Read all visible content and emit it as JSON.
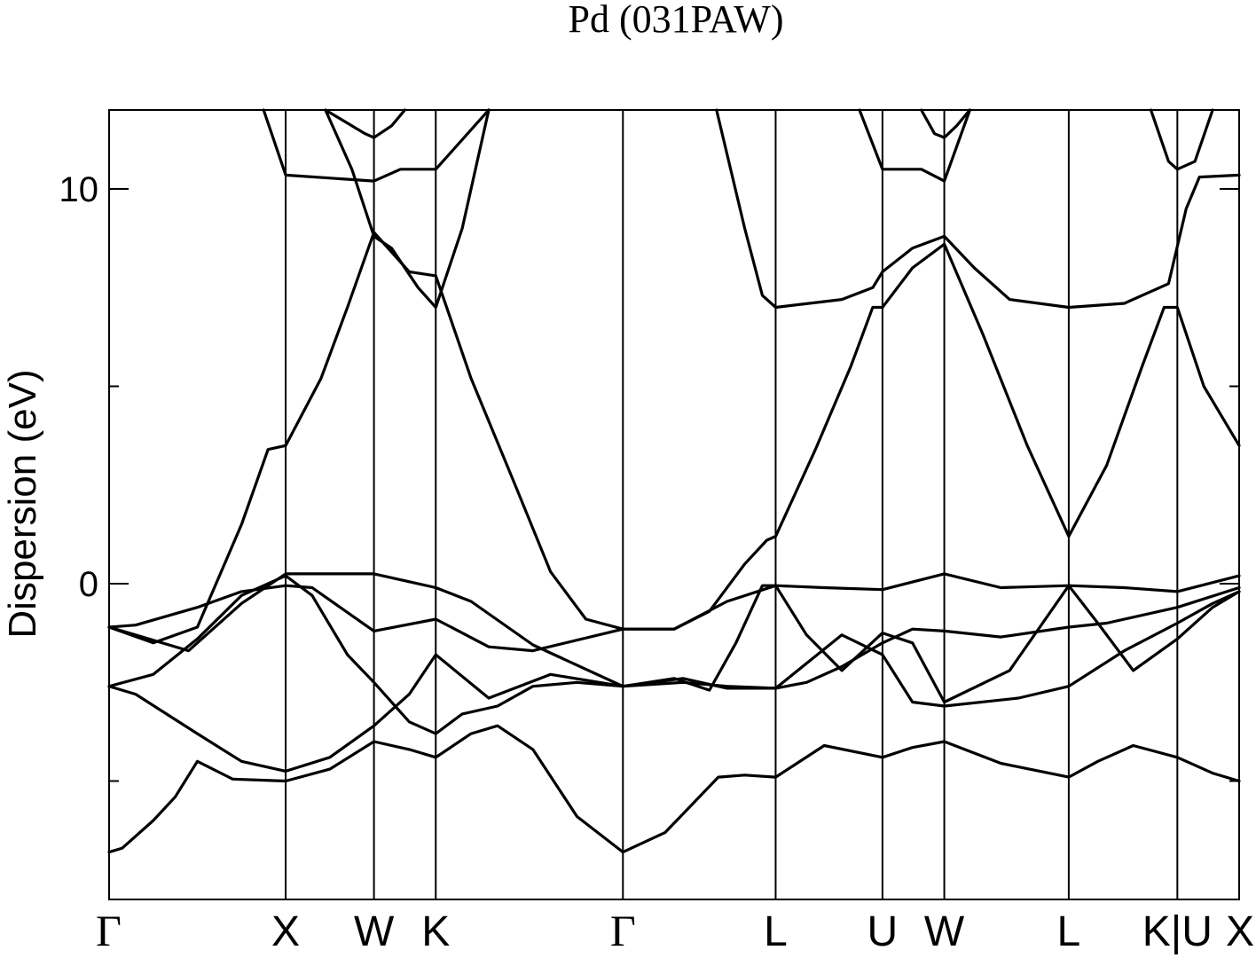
{
  "chart_data": {
    "type": "line",
    "title": "Pd (031PAW)",
    "ylabel": "Dispersion (eV)",
    "xlabel": "",
    "x_range": [
      0,
      12.8
    ],
    "ylim": [
      -8.0,
      12.0
    ],
    "y_ticks_major": [
      0,
      10
    ],
    "y_ticks_minor": [
      -5,
      5
    ],
    "grid": false,
    "legend": "none",
    "kpoints": [
      {
        "label": "Γ",
        "x": 0.0
      },
      {
        "label": "X",
        "x": 2.0
      },
      {
        "label": "W",
        "x": 3.0
      },
      {
        "label": "K",
        "x": 3.7
      },
      {
        "label": "Γ",
        "x": 5.82
      },
      {
        "label": "L",
        "x": 7.55
      },
      {
        "label": "U",
        "x": 8.76
      },
      {
        "label": "W",
        "x": 9.46
      },
      {
        "label": "L",
        "x": 10.87
      },
      {
        "label": "K|U",
        "x": 12.1
      },
      {
        "label": "X",
        "x": 12.8
      }
    ],
    "series": [
      {
        "points": [
          [
            0,
            -6.8
          ],
          [
            0.15,
            -6.7
          ],
          [
            0.5,
            -6.0
          ],
          [
            0.75,
            -5.4
          ],
          [
            1.0,
            -4.5
          ],
          [
            1.4,
            -4.95
          ],
          [
            2.0,
            -5.0
          ],
          [
            2.5,
            -4.7
          ],
          [
            3.0,
            -4.0
          ],
          [
            3.4,
            -4.2
          ],
          [
            3.7,
            -4.4
          ],
          [
            4.1,
            -3.8
          ],
          [
            4.4,
            -3.6
          ],
          [
            4.8,
            -4.2
          ],
          [
            5.3,
            -5.9
          ],
          [
            5.82,
            -6.8
          ],
          [
            6.3,
            -6.3
          ],
          [
            6.9,
            -4.9
          ],
          [
            7.2,
            -4.85
          ],
          [
            7.55,
            -4.9
          ],
          [
            8.1,
            -4.1
          ],
          [
            8.76,
            -4.4
          ],
          [
            9.1,
            -4.15
          ],
          [
            9.46,
            -4.0
          ],
          [
            10.1,
            -4.55
          ],
          [
            10.87,
            -4.9
          ],
          [
            11.2,
            -4.5
          ],
          [
            11.6,
            -4.1
          ],
          [
            12.1,
            -4.4
          ],
          [
            12.5,
            -4.8
          ],
          [
            12.8,
            -5.0
          ]
        ]
      },
      {
        "points": [
          [
            0,
            -2.6
          ],
          [
            0.3,
            -2.8
          ],
          [
            1.0,
            -3.8
          ],
          [
            1.5,
            -4.5
          ],
          [
            2.0,
            -4.75
          ],
          [
            2.5,
            -4.4
          ],
          [
            3.0,
            -3.6
          ],
          [
            3.4,
            -2.8
          ],
          [
            3.7,
            -1.8
          ],
          [
            4.3,
            -2.9
          ],
          [
            5.0,
            -2.3
          ],
          [
            5.82,
            -2.6
          ],
          [
            6.5,
            -2.4
          ],
          [
            7.0,
            -2.65
          ],
          [
            7.55,
            -2.65
          ],
          [
            8.3,
            -1.3
          ],
          [
            8.76,
            -1.8
          ],
          [
            9.1,
            -3.0
          ],
          [
            9.46,
            -3.1
          ],
          [
            10.3,
            -2.9
          ],
          [
            10.87,
            -2.6
          ],
          [
            11.5,
            -1.7
          ],
          [
            12.1,
            -1.0
          ],
          [
            12.5,
            -0.5
          ],
          [
            12.8,
            -0.2
          ]
        ]
      },
      {
        "points": [
          [
            0,
            -1.1
          ],
          [
            0.3,
            -1.3
          ],
          [
            0.9,
            -1.7
          ],
          [
            1.5,
            -0.5
          ],
          [
            2.0,
            0.25
          ],
          [
            2.5,
            0.25
          ],
          [
            3.0,
            0.25
          ],
          [
            3.4,
            0.05
          ],
          [
            3.7,
            -0.1
          ],
          [
            4.1,
            -0.45
          ],
          [
            4.8,
            -1.55
          ],
          [
            5.82,
            -2.6
          ],
          [
            6.5,
            -2.5
          ],
          [
            7.0,
            -2.6
          ],
          [
            7.55,
            -2.65
          ],
          [
            7.9,
            -2.5
          ],
          [
            8.3,
            -2.1
          ],
          [
            8.76,
            -1.5
          ],
          [
            9.1,
            -1.15
          ],
          [
            9.46,
            -1.2
          ],
          [
            10.1,
            -1.35
          ],
          [
            10.87,
            -1.1
          ],
          [
            11.3,
            -1.0
          ],
          [
            12.1,
            -0.6
          ],
          [
            12.8,
            -0.1
          ]
        ]
      },
      {
        "points": [
          [
            0,
            -1.1
          ],
          [
            0.3,
            -1.05
          ],
          [
            1.0,
            -0.6
          ],
          [
            1.5,
            -0.2
          ],
          [
            2.0,
            -0.05
          ],
          [
            2.3,
            -0.1
          ],
          [
            3.0,
            -1.2
          ],
          [
            3.7,
            -0.9
          ],
          [
            4.3,
            -1.6
          ],
          [
            4.8,
            -1.7
          ],
          [
            5.82,
            -1.15
          ],
          [
            6.4,
            -1.15
          ],
          [
            7.0,
            -0.45
          ],
          [
            7.55,
            -0.05
          ],
          [
            8.1,
            -0.1
          ],
          [
            8.76,
            -0.15
          ],
          [
            9.46,
            0.25
          ],
          [
            10.1,
            -0.1
          ],
          [
            10.87,
            -0.05
          ],
          [
            11.5,
            -0.1
          ],
          [
            12.1,
            -0.2
          ],
          [
            12.8,
            0.2
          ]
        ]
      },
      {
        "points": [
          [
            0,
            -2.6
          ],
          [
            0.5,
            -2.3
          ],
          [
            1.0,
            -1.4
          ],
          [
            1.5,
            -0.3
          ],
          [
            2.0,
            0.2
          ],
          [
            2.3,
            -0.3
          ],
          [
            2.7,
            -1.8
          ],
          [
            3.0,
            -2.5
          ],
          [
            3.4,
            -3.5
          ],
          [
            3.7,
            -3.8
          ],
          [
            4.0,
            -3.3
          ],
          [
            4.4,
            -3.1
          ],
          [
            4.8,
            -2.6
          ],
          [
            5.3,
            -2.5
          ],
          [
            5.82,
            -2.6
          ],
          [
            6.4,
            -2.4
          ],
          [
            6.8,
            -2.7
          ],
          [
            7.1,
            -1.5
          ],
          [
            7.4,
            -0.05
          ],
          [
            7.55,
            -0.05
          ],
          [
            7.9,
            -1.3
          ],
          [
            8.3,
            -2.2
          ],
          [
            8.76,
            -1.25
          ],
          [
            9.1,
            -1.5
          ],
          [
            9.46,
            -3.0
          ],
          [
            10.2,
            -2.2
          ],
          [
            10.87,
            -0.05
          ],
          [
            11.2,
            -1.0
          ],
          [
            11.6,
            -2.2
          ],
          [
            12.1,
            -1.4
          ],
          [
            12.5,
            -0.6
          ],
          [
            12.8,
            -0.2
          ]
        ]
      },
      {
        "points": [
          [
            0,
            -1.1
          ],
          [
            0.5,
            -1.5
          ],
          [
            1.0,
            -1.1
          ],
          [
            1.5,
            1.5
          ],
          [
            1.8,
            3.4
          ],
          [
            2.0,
            3.5
          ],
          [
            2.4,
            5.2
          ],
          [
            2.7,
            7.0
          ],
          [
            3.0,
            8.9
          ],
          [
            3.4,
            7.9
          ],
          [
            3.7,
            7.8
          ],
          [
            4.1,
            5.2
          ],
          [
            4.6,
            2.5
          ],
          [
            5.0,
            0.3
          ],
          [
            5.4,
            -0.9
          ],
          [
            5.82,
            -1.15
          ],
          [
            6.4,
            -1.15
          ],
          [
            6.8,
            -0.7
          ],
          [
            7.2,
            0.5
          ],
          [
            7.45,
            1.1
          ],
          [
            7.55,
            1.2
          ],
          [
            8.0,
            3.4
          ],
          [
            8.4,
            5.5
          ],
          [
            8.65,
            7.0
          ],
          [
            8.76,
            7.0
          ],
          [
            9.1,
            8.0
          ],
          [
            9.46,
            8.6
          ],
          [
            9.9,
            6.3
          ],
          [
            10.4,
            3.5
          ],
          [
            10.87,
            1.2
          ],
          [
            11.3,
            3.0
          ],
          [
            11.7,
            5.5
          ],
          [
            11.95,
            7.0
          ],
          [
            12.1,
            7.0
          ],
          [
            12.4,
            5.0
          ],
          [
            12.8,
            3.5
          ]
        ]
      },
      {
        "points": [
          [
            1.75,
            12.0
          ],
          [
            2.0,
            10.35
          ],
          [
            3.0,
            10.2
          ],
          [
            3.3,
            10.5
          ],
          [
            3.7,
            10.5
          ],
          [
            4.3,
            12.0
          ]
        ]
      },
      {
        "points": [
          [
            2.45,
            12.0
          ],
          [
            2.75,
            10.5
          ],
          [
            3.0,
            8.8
          ],
          [
            3.2,
            8.5
          ],
          [
            3.5,
            7.5
          ],
          [
            3.7,
            7.0
          ],
          [
            4.0,
            9.0
          ],
          [
            4.3,
            12.0
          ]
        ]
      },
      {
        "points": [
          [
            2.45,
            12.0
          ],
          [
            2.9,
            11.4
          ],
          [
            3.0,
            11.3
          ],
          [
            3.2,
            11.6
          ],
          [
            3.35,
            12.0
          ]
        ]
      },
      {
        "points": [
          [
            6.88,
            12.0
          ],
          [
            7.2,
            9.0
          ],
          [
            7.4,
            7.3
          ],
          [
            7.55,
            7.0
          ],
          [
            8.3,
            7.2
          ],
          [
            8.65,
            7.5
          ],
          [
            8.76,
            7.9
          ],
          [
            9.1,
            8.5
          ],
          [
            9.46,
            8.8
          ],
          [
            9.8,
            8.0
          ],
          [
            10.2,
            7.2
          ],
          [
            10.87,
            7.0
          ],
          [
            11.5,
            7.1
          ],
          [
            12.0,
            7.6
          ],
          [
            12.2,
            9.5
          ],
          [
            12.35,
            10.3
          ],
          [
            12.8,
            10.35
          ]
        ]
      },
      {
        "points": [
          [
            8.5,
            12.0
          ],
          [
            8.76,
            10.5
          ],
          [
            9.2,
            10.5
          ],
          [
            9.46,
            10.2
          ],
          [
            9.75,
            12.0
          ]
        ]
      },
      {
        "points": [
          [
            9.2,
            12.0
          ],
          [
            9.35,
            11.4
          ],
          [
            9.46,
            11.3
          ],
          [
            9.6,
            11.6
          ],
          [
            9.75,
            12.0
          ]
        ]
      },
      {
        "points": [
          [
            11.8,
            12.0
          ],
          [
            12.0,
            10.7
          ],
          [
            12.1,
            10.5
          ],
          [
            12.3,
            10.7
          ],
          [
            12.5,
            12.0
          ]
        ]
      }
    ]
  }
}
